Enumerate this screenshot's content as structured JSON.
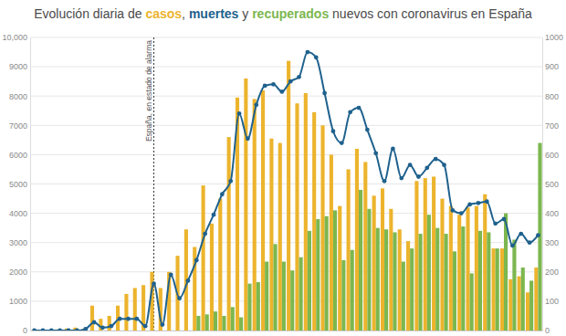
{
  "chart_data": {
    "type": "bar",
    "title": "Evolución diaria de casos, muertes y recuperados nuevos con coronavirus en España",
    "categories": [
      null,
      null,
      null,
      null,
      null,
      null,
      null,
      null,
      null,
      null,
      null,
      null,
      null,
      null,
      null,
      null,
      null,
      null,
      null,
      null,
      null,
      null,
      null,
      null,
      null,
      null,
      null,
      null,
      null,
      null,
      null,
      null,
      null,
      null,
      null,
      null,
      null,
      null,
      null,
      null,
      null,
      null,
      null,
      null,
      null,
      null,
      null,
      null,
      null,
      null,
      null,
      null,
      null,
      null,
      null,
      null,
      null,
      null,
      null,
      null
    ],
    "series": [
      {
        "name": "casos",
        "color": "#ecb42d",
        "type": "bar",
        "values": [
          5,
          15,
          30,
          40,
          70,
          100,
          60,
          850,
          400,
          500,
          850,
          1250,
          1450,
          1550,
          2000,
          1450,
          2000,
          2550,
          3450,
          2850,
          4950,
          3650,
          4500,
          6600,
          7950,
          8600,
          7900,
          8200,
          6550,
          6400,
          9200,
          7750,
          8100,
          7450,
          7000,
          6000,
          4250,
          5500,
          6200,
          5750,
          4600,
          4850,
          4150,
          3450,
          3050,
          5100,
          5200,
          5250,
          4500,
          4250,
          3950,
          4200,
          4250,
          4650,
          2800,
          2800,
          1750,
          1850,
          1300,
          2150
        ]
      },
      {
        "name": "muertes",
        "color": "#1f618d",
        "type": "line",
        "marker": "circle",
        "axis": "y2",
        "values": [
          0,
          0,
          0,
          0,
          0,
          0,
          5,
          28,
          10,
          15,
          40,
          40,
          40,
          15,
          160,
          20,
          190,
          110,
          170,
          240,
          330,
          395,
          465,
          510,
          740,
          655,
          770,
          835,
          840,
          815,
          850,
          865,
          950,
          932,
          810,
          680,
          640,
          745,
          760,
          685,
          605,
          510,
          620,
          520,
          565,
          525,
          555,
          585,
          565,
          410,
          400,
          430,
          435,
          440,
          365,
          380,
          290,
          330,
          300,
          325
        ]
      },
      {
        "name": "recuperados",
        "color": "#7cb74f",
        "type": "bar",
        "values": [
          0,
          0,
          0,
          0,
          0,
          0,
          0,
          0,
          0,
          0,
          0,
          0,
          0,
          0,
          0,
          0,
          0,
          0,
          0,
          500,
          550,
          650,
          500,
          800,
          450,
          1600,
          1650,
          2350,
          2950,
          2350,
          2050,
          2500,
          3400,
          3800,
          3900,
          4100,
          2400,
          2750,
          4800,
          4150,
          3500,
          3450,
          3350,
          2350,
          2800,
          3300,
          3950,
          3500,
          3300,
          2700,
          3550,
          1950,
          3400,
          3350,
          2800,
          4000,
          3100,
          2150,
          1700,
          6400
        ]
      }
    ],
    "ylim": [
      0,
      10000
    ],
    "yticks": [
      0,
      1000,
      2000,
      3000,
      4000,
      5000,
      6000,
      7000,
      8000,
      9000,
      {
        "value": 10000,
        "label": "10,000"
      }
    ],
    "y2lim": [
      0,
      1000
    ],
    "y2ticks": [
      0,
      100,
      200,
      300,
      400,
      500,
      600,
      700,
      800,
      900,
      1000
    ],
    "grid": true,
    "annotations": [
      {
        "text": "España, en estado de alarma",
        "x": 14
      }
    ]
  }
}
